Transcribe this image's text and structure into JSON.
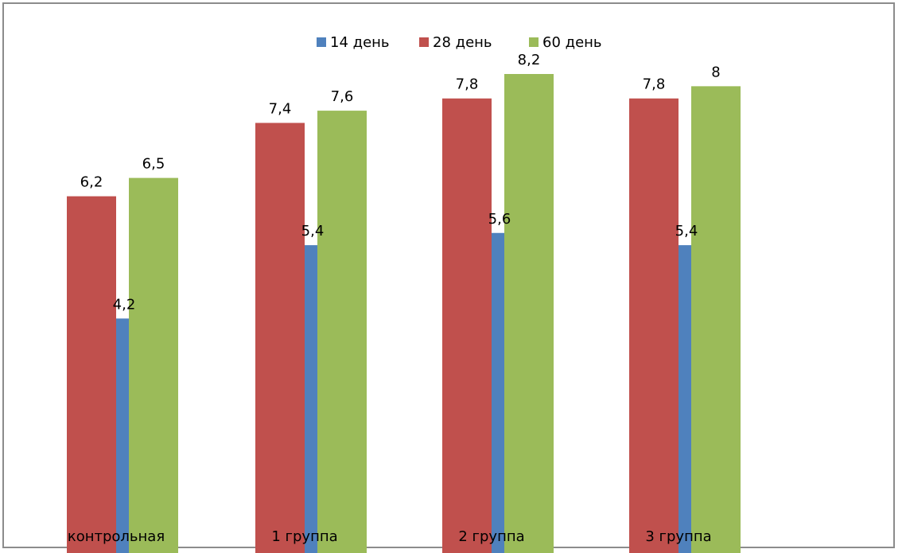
{
  "chart_data": {
    "type": "bar",
    "categories": [
      "контрольная",
      "1 группа",
      "2 группа",
      "3 группа"
    ],
    "series": [
      {
        "name": "14 день",
        "values": [
          4.2,
          5.4,
          5.6,
          5.4
        ],
        "value_labels": [
          "4,2",
          "5,4",
          "5,6",
          "5,4"
        ],
        "color": "#4f81bd"
      },
      {
        "name": "28 день",
        "values": [
          6.2,
          7.4,
          7.8,
          7.8
        ],
        "value_labels": [
          "6,2",
          "7,4",
          "7,8",
          "7,8"
        ],
        "color": "#c0504d"
      },
      {
        "name": "60 день",
        "values": [
          6.5,
          7.6,
          8.2,
          8
        ],
        "value_labels": [
          "6,5",
          "7,6",
          "8,2",
          "8"
        ],
        "color": "#9bbb59"
      }
    ],
    "title": "",
    "xlabel": "",
    "ylabel": "",
    "ylim": [
      0,
      9
    ],
    "grid": false,
    "legend": "top",
    "bar_arrangement": "overlapping",
    "axis_color": "#a6a6a6"
  }
}
